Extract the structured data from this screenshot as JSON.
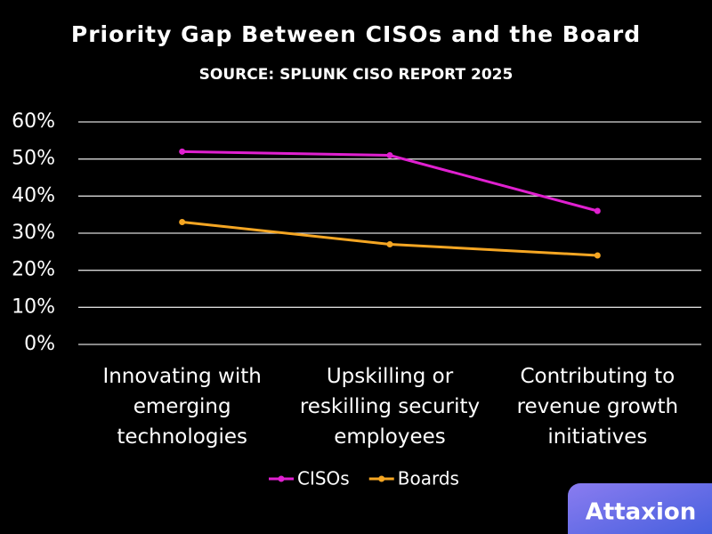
{
  "chart_data": {
    "type": "line",
    "title": "Priority Gap Between CISOs and the Board",
    "subtitle": "SOURCE: SPLUNK CISO REPORT 2025",
    "categories": [
      "Innovating with emerging technologies",
      "Upskilling or reskilling security employees",
      "Contributing to revenue growth initiatives"
    ],
    "series": [
      {
        "name": "CISOs",
        "color": "#e020d0",
        "values": [
          52,
          51,
          36
        ]
      },
      {
        "name": "Boards",
        "color": "#f5a623",
        "values": [
          33,
          27,
          24
        ]
      }
    ],
    "ylim": [
      0,
      60
    ],
    "yticks": [
      {
        "value": 0,
        "label": "0%"
      },
      {
        "value": 10,
        "label": "10%"
      },
      {
        "value": 20,
        "label": "20%"
      },
      {
        "value": 30,
        "label": "30%"
      },
      {
        "value": 40,
        "label": "40%"
      },
      {
        "value": 50,
        "label": "50%"
      },
      {
        "value": 60,
        "label": "60%"
      }
    ],
    "grid": true,
    "legend": "bottom"
  },
  "logo": "Attaxion"
}
